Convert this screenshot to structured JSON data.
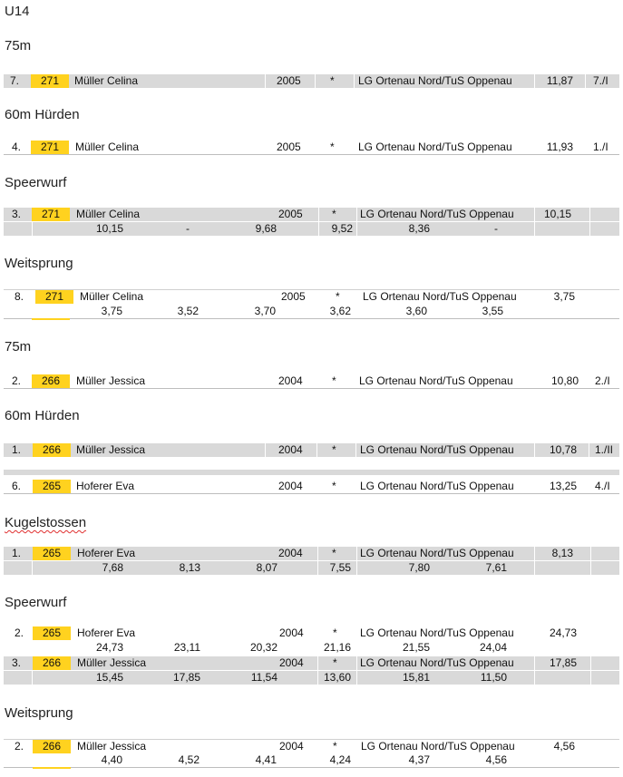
{
  "colors": {
    "number_highlight": "#ffd21f",
    "row_gray": "#d9d9d9",
    "spellcheck_underline": "#e03030"
  },
  "title": "U14",
  "blocks": [
    {
      "heading": "75m",
      "rows": [
        {
          "rank": "7.",
          "number": "271",
          "name": "Müller Celina",
          "year": "2005",
          "mark": "*",
          "club": "LG Ortenau Nord/TuS Oppenau",
          "result": "11,87",
          "place": "7./I"
        }
      ]
    },
    {
      "heading": "60m Hürden",
      "rows": [
        {
          "rank": "4.",
          "number": "271",
          "name": "Müller Celina",
          "year": "2005",
          "mark": "*",
          "club": "LG Ortenau Nord/TuS Oppenau",
          "result": "11,93",
          "place": "1./I"
        }
      ]
    },
    {
      "heading": "Speerwurf",
      "rows": [
        {
          "rank": "3.",
          "number": "271",
          "name": "Müller Celina",
          "year": "2005",
          "mark": "*",
          "club": "LG Ortenau Nord/TuS Oppenau",
          "result": "10,15",
          "place": "",
          "attempts": [
            "10,15",
            "-",
            "9,68",
            "9,52",
            "8,36",
            "-"
          ]
        }
      ]
    },
    {
      "heading": "Weitsprung",
      "rows": [
        {
          "rank": "8.",
          "number": "271",
          "name": "Müller Celina",
          "year": "2005",
          "mark": "*",
          "club": "LG Ortenau Nord/TuS Oppenau",
          "result": "3,75",
          "place": "",
          "attempts": [
            "3,75",
            "3,52",
            "3,70",
            "3,62",
            "3,60",
            "3,55"
          ]
        }
      ]
    },
    {
      "heading": "75m",
      "rows": [
        {
          "rank": "2.",
          "number": "266",
          "name": "Müller Jessica",
          "year": "2004",
          "mark": "*",
          "club": "LG Ortenau Nord/TuS Oppenau",
          "result": "10,80",
          "place": "2./I"
        }
      ]
    },
    {
      "heading": "60m Hürden",
      "rows": [
        {
          "rank": "1.",
          "number": "266",
          "name": "Müller Jessica",
          "year": "2004",
          "mark": "*",
          "club": "LG Ortenau Nord/TuS Oppenau",
          "result": "10,78",
          "place": "1./II"
        },
        {
          "rank": "6.",
          "number": "265",
          "name": "Hoferer Eva",
          "year": "2004",
          "mark": "*",
          "club": "LG Ortenau Nord/TuS Oppenau",
          "result": "13,25",
          "place": "4./I"
        }
      ]
    },
    {
      "heading": "Kugelstossen",
      "rows": [
        {
          "rank": "1.",
          "number": "265",
          "name": "Hoferer Eva",
          "year": "2004",
          "mark": "*",
          "club": "LG Ortenau Nord/TuS Oppenau",
          "result": "8,13",
          "place": "",
          "attempts": [
            "7,68",
            "8,13",
            "8,07",
            "7,55",
            "7,80",
            "7,61"
          ]
        }
      ]
    },
    {
      "heading": "Speerwurf",
      "rows": [
        {
          "rank": "2.",
          "number": "265",
          "name": "Hoferer Eva",
          "year": "2004",
          "mark": "*",
          "club": "LG Ortenau Nord/TuS Oppenau",
          "result": "24,73",
          "place": "",
          "attempts": [
            "24,73",
            "23,11",
            "20,32",
            "21,16",
            "21,55",
            "24,04"
          ]
        },
        {
          "rank": "3.",
          "number": "266",
          "name": "Müller Jessica",
          "year": "2004",
          "mark": "*",
          "club": "LG Ortenau Nord/TuS Oppenau",
          "result": "17,85",
          "place": "",
          "attempts": [
            "15,45",
            "17,85",
            "11,54",
            "13,60",
            "15,81",
            "11,50"
          ]
        }
      ]
    },
    {
      "heading": "Weitsprung",
      "rows": [
        {
          "rank": "2.",
          "number": "266",
          "name": "Müller Jessica",
          "year": "2004",
          "mark": "*",
          "club": "LG Ortenau Nord/TuS Oppenau",
          "result": "4,56",
          "place": "",
          "attempts": [
            "4,40",
            "4,52",
            "4,41",
            "4,24",
            "4,37",
            "4,56"
          ]
        }
      ]
    }
  ]
}
